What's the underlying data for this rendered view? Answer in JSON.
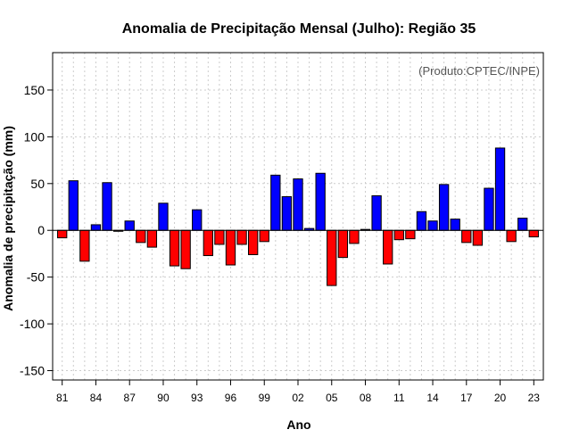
{
  "chart_data": {
    "type": "bar",
    "title": "Anomalia de Precipitação Mensal (Julho): Região 35",
    "xlabel": "Ano",
    "ylabel": "Anomalia de precipitação (mm)",
    "annotation": "(Produto:CPTEC/INPE)",
    "ylim": [
      -160,
      190
    ],
    "yticks": [
      -150,
      -100,
      -50,
      0,
      50,
      100,
      150
    ],
    "ytick_labels": [
      "-150",
      "-100",
      "-50",
      "0",
      "50",
      "100",
      "150"
    ],
    "xtick_labels": [
      "81",
      "84",
      "87",
      "90",
      "93",
      "96",
      "99",
      "02",
      "05",
      "08",
      "11",
      "14",
      "17",
      "20",
      "23"
    ],
    "xtick_index": [
      0,
      3,
      6,
      9,
      12,
      15,
      18,
      21,
      24,
      27,
      30,
      33,
      36,
      39,
      42
    ],
    "positive_color": "#0000ff",
    "negative_color": "#ff0000",
    "categories": [
      "1981",
      "1982",
      "1983",
      "1984",
      "1985",
      "1986",
      "1987",
      "1988",
      "1989",
      "1990",
      "1991",
      "1992",
      "1993",
      "1994",
      "1995",
      "1996",
      "1997",
      "1998",
      "1999",
      "2000",
      "2001",
      "2002",
      "2003",
      "2004",
      "2005",
      "2006",
      "2007",
      "2008",
      "2009",
      "2010",
      "2011",
      "2012",
      "2013",
      "2014",
      "2015",
      "2016",
      "2017",
      "2018",
      "2019",
      "2020",
      "2021",
      "2022",
      "2023"
    ],
    "values": [
      -8,
      53,
      -33,
      6,
      51,
      -1,
      10,
      -13,
      -18,
      29,
      -38,
      -41,
      22,
      -27,
      -15,
      -37,
      -15,
      -26,
      -12,
      59,
      36,
      55,
      2,
      61,
      -59,
      -29,
      -14,
      1,
      37,
      -36,
      -10,
      -9,
      20,
      10,
      49,
      12,
      -13,
      -16,
      45,
      88,
      -12,
      13,
      -7
    ]
  }
}
